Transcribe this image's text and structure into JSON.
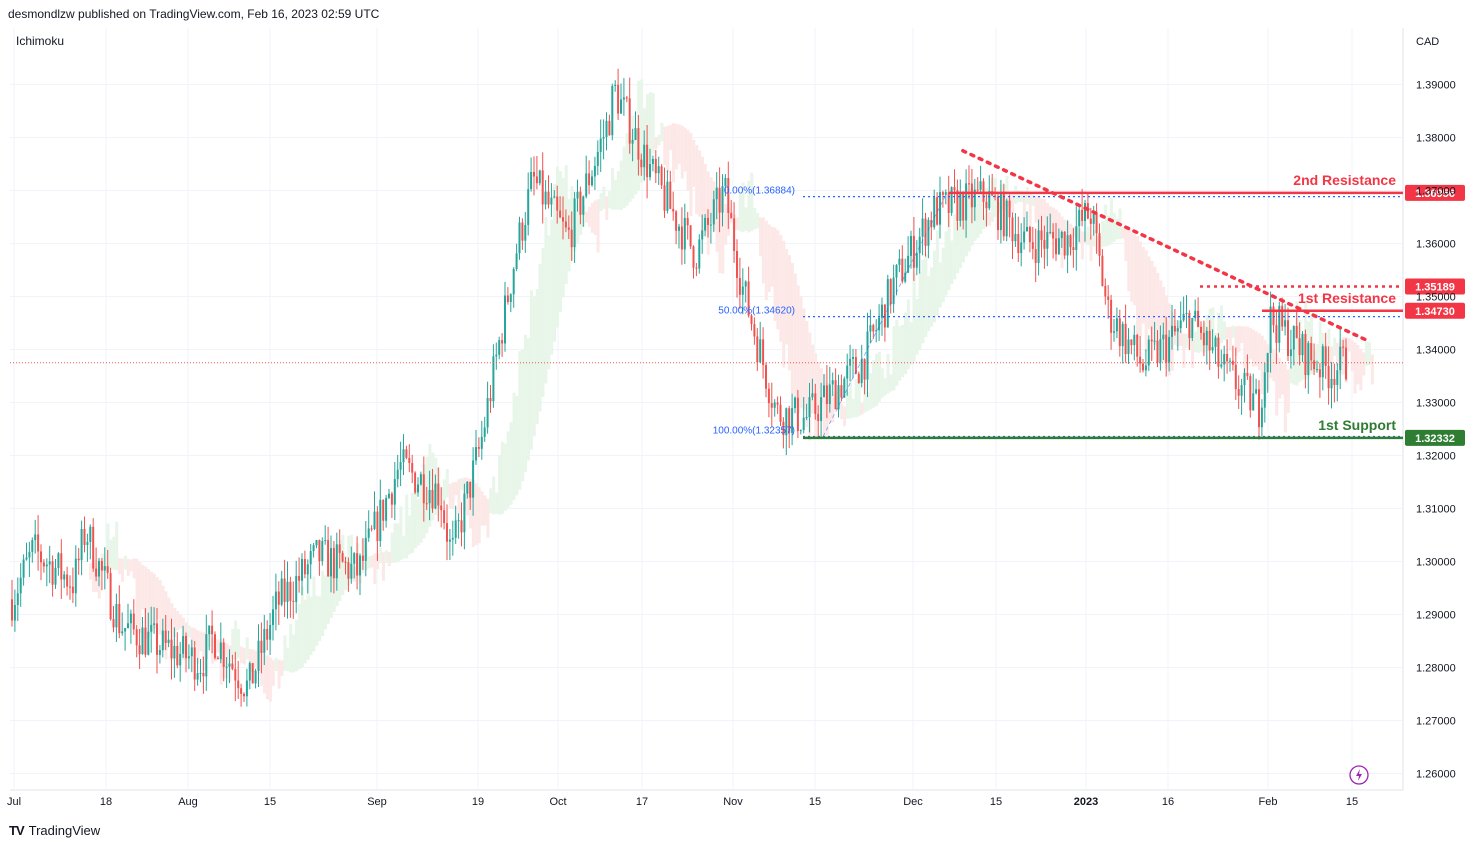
{
  "header": {
    "published": "desmondlzw published on TradingView.com, Feb 16, 2023 02:59 UTC",
    "indicator": "Ichimoku",
    "currency": "CAD"
  },
  "footer": {
    "brand": "TradingView",
    "logo_icon": "tradingview-logo-icon"
  },
  "colors": {
    "up": "#26a69a",
    "down": "#ef5350",
    "resistance": "#f23645",
    "support": "#22ab94",
    "support_dark": "#2e7d32",
    "fib": "#2962ff",
    "cloud_green": "#e8f5e9",
    "cloud_red": "#fde8e8",
    "trendline": "#f23645"
  },
  "chart_data": {
    "type": "candlestick",
    "symbol_currency": "CAD",
    "ylim": [
      1.255,
      1.4
    ],
    "y_ticks": [
      "1.39000",
      "1.38000",
      "1.37000",
      "1.36000",
      "1.35000",
      "1.34000",
      "1.33000",
      "1.32000",
      "1.31000",
      "1.30000",
      "1.29000",
      "1.28000",
      "1.27000",
      "1.26000"
    ],
    "x_ticks": [
      "Jul",
      "18",
      "Aug",
      "15",
      "Sep",
      "19",
      "Oct",
      "17",
      "Nov",
      "15",
      "Dec",
      "15",
      "2023",
      "16",
      "Feb",
      "15"
    ],
    "levels": [
      {
        "label": "2nd Resistance",
        "value": "1.36956",
        "style": "solid",
        "color": "#f23645"
      },
      {
        "label": "",
        "value": "1.35189",
        "style": "dotted",
        "color": "#f23645"
      },
      {
        "label": "1st Resistance",
        "value": "1.34730",
        "style": "solid",
        "color": "#f23645"
      },
      {
        "label": "1st Support",
        "value": "1.32332",
        "style": "solid",
        "color": "#2e7d32"
      }
    ],
    "fibonacci": [
      {
        "label": "0.00%(1.36884)",
        "value": 1.36884
      },
      {
        "label": "50.00%(1.34620)",
        "value": 1.3462
      },
      {
        "label": "100.00%(1.32357)",
        "value": 1.32357
      }
    ],
    "current_price": 1.3375,
    "trendline": {
      "from": [
        "Dec 12",
        1.3775
      ],
      "to": [
        "Feb 20",
        1.3415
      ],
      "style": "dotted"
    },
    "price_path": [
      [
        "Jul 1",
        1.292
      ],
      [
        "Jul 5",
        1.302
      ],
      [
        "Jul 12",
        1.296
      ],
      [
        "Jul 14",
        1.306
      ],
      [
        "Jul 20",
        1.288
      ],
      [
        "Jul 27",
        1.284
      ],
      [
        "Aug 3",
        1.281
      ],
      [
        "Aug 5",
        1.286
      ],
      [
        "Aug 11",
        1.276
      ],
      [
        "Aug 16",
        1.292
      ],
      [
        "Aug 23",
        1.301
      ],
      [
        "Aug 30",
        1.298
      ],
      [
        "Sep 6",
        1.318
      ],
      [
        "Sep 13",
        1.313
      ],
      [
        "Sep 15",
        1.301
      ],
      [
        "Sep 20",
        1.322
      ],
      [
        "Sep 26",
        1.358
      ],
      [
        "Sep 29",
        1.372
      ],
      [
        "Oct 5",
        1.361
      ],
      [
        "Oct 12",
        1.383
      ],
      [
        "Oct 13",
        1.389
      ],
      [
        "Oct 20",
        1.372
      ],
      [
        "Oct 27",
        1.358
      ],
      [
        "Nov 1",
        1.37
      ],
      [
        "Nov 4",
        1.352
      ],
      [
        "Nov 10",
        1.328
      ],
      [
        "Nov 15",
        1.327
      ],
      [
        "Nov 25",
        1.338
      ],
      [
        "Nov 30",
        1.352
      ],
      [
        "Dec 7",
        1.366
      ],
      [
        "Dec 16",
        1.369
      ],
      [
        "Dec 23",
        1.36
      ],
      [
        "Dec 30",
        1.361
      ],
      [
        "Jan 3",
        1.366
      ],
      [
        "Jan 6",
        1.347
      ],
      [
        "Jan 12",
        1.337
      ],
      [
        "Jan 17",
        1.342
      ],
      [
        "Jan 20",
        1.346
      ],
      [
        "Jan 26",
        1.336
      ],
      [
        "Feb 1",
        1.329
      ],
      [
        "Feb 3",
        1.346
      ],
      [
        "Feb 9",
        1.339
      ],
      [
        "Feb 13",
        1.336
      ],
      [
        "Feb 16",
        1.3375
      ]
    ]
  }
}
